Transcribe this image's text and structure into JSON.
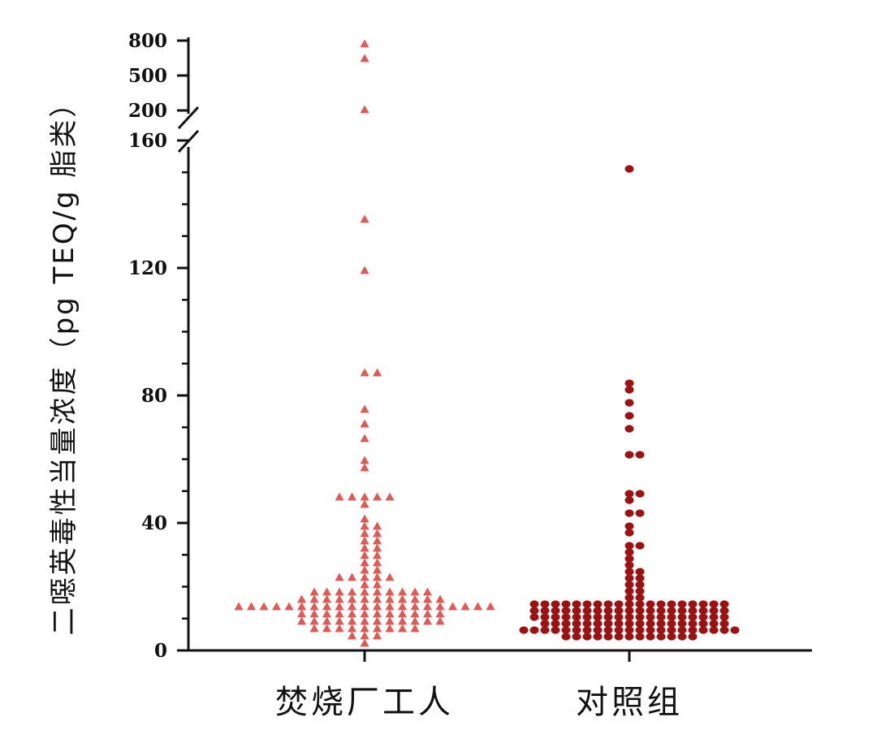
{
  "chart_data": {
    "type": "scatter",
    "subtype": "beeswarm",
    "ylabel": "二噁英毒性当量浓度（pg TEQ/g 脂类）",
    "categories": [
      "焚烧厂工人",
      "对照组"
    ],
    "y_axis": {
      "broken": true,
      "lower_range": [
        0,
        160
      ],
      "lower_ticks": [
        "0",
        "40",
        "80",
        "120",
        "160"
      ],
      "upper_range": [
        200,
        800
      ],
      "upper_ticks": [
        "200",
        "500",
        "800"
      ]
    },
    "colors": {
      "workers": "#e05a55",
      "control": "#9b1212"
    },
    "series": [
      {
        "name": "焚烧厂工人",
        "marker": "triangle",
        "values": [
          750,
          650,
          230,
          136,
          120,
          88,
          86,
          76,
          71,
          67,
          60,
          58,
          49,
          49,
          49,
          48,
          48,
          45,
          42,
          39,
          38,
          37,
          36,
          35,
          34,
          33,
          31,
          30,
          29,
          28,
          27,
          25,
          25,
          24,
          23,
          23,
          22,
          22,
          21,
          20,
          19,
          19,
          19,
          19,
          19,
          19,
          18,
          18,
          18,
          18,
          17,
          17,
          17,
          16,
          16,
          16,
          16,
          15,
          15,
          15,
          15,
          15,
          14,
          14,
          14,
          14,
          14,
          13,
          13,
          13,
          13,
          13,
          13,
          13,
          13,
          13,
          13,
          13,
          13,
          13,
          13,
          13,
          13,
          12,
          12,
          12,
          12,
          12,
          12,
          11,
          11,
          11,
          11,
          11,
          11,
          10,
          10,
          10,
          10,
          10,
          10,
          10,
          9,
          9,
          9,
          9,
          9,
          8,
          8,
          8,
          8,
          7,
          7,
          7,
          6,
          6,
          5,
          5,
          4,
          3
        ]
      },
      {
        "name": "对照组",
        "marker": "circle",
        "values": [
          151,
          83,
          81,
          77,
          74,
          70,
          62,
          61,
          50,
          50,
          47,
          43,
          43,
          39,
          37,
          32,
          32,
          30,
          29,
          26,
          25,
          25,
          23,
          22,
          20,
          20,
          19,
          18,
          17,
          16,
          15,
          15,
          15,
          15,
          15,
          15,
          15,
          15,
          15,
          15,
          14,
          14,
          14,
          14,
          14,
          14,
          14,
          14,
          14,
          13,
          13,
          13,
          13,
          13,
          13,
          13,
          13,
          13,
          13,
          13,
          12,
          12,
          12,
          12,
          12,
          12,
          12,
          12,
          11,
          11,
          11,
          11,
          11,
          11,
          10,
          10,
          10,
          10,
          10,
          10,
          10,
          10,
          10,
          10,
          10,
          10,
          10,
          9,
          9,
          9,
          9,
          9,
          9,
          9,
          9,
          8,
          8,
          8,
          8,
          8,
          8,
          8,
          8,
          8,
          8,
          7,
          7,
          7,
          7,
          7,
          7,
          7,
          7,
          7,
          7,
          7,
          7,
          7,
          6,
          6,
          6,
          6,
          6,
          6,
          6,
          6,
          5,
          5,
          5,
          5,
          5,
          5,
          5,
          4,
          4,
          4,
          4,
          4,
          4
        ]
      }
    ],
    "grid": false,
    "legend": "none"
  }
}
